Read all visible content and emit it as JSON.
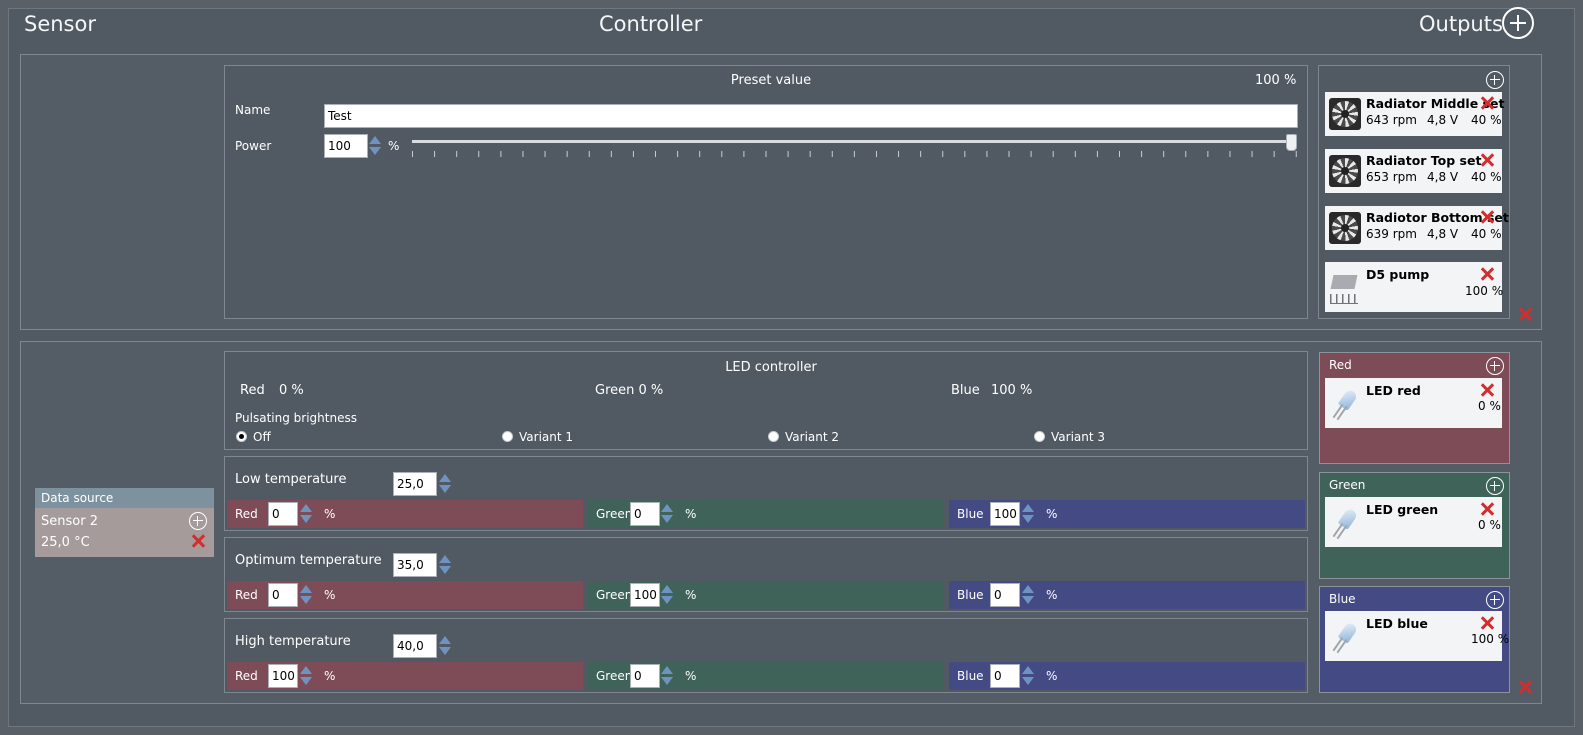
{
  "header": {
    "sensor": "Sensor",
    "controller": "Controller",
    "outputs": "Outputs"
  },
  "preset": {
    "title": "Preset value",
    "value": "100 %",
    "name_label": "Name",
    "name_value": "Test",
    "power_label": "Power",
    "power_value": "100",
    "power_unit": "%",
    "power_level": 1.0
  },
  "outputs1": [
    {
      "name": "Radiator Middle set",
      "rpm": "643 rpm",
      "volt": "4,8 V",
      "pct": "40 %",
      "icon": "fan-icon"
    },
    {
      "name": "Radiator Top set",
      "rpm": "653 rpm",
      "volt": "4,8 V",
      "pct": "40 %",
      "icon": "fan-icon"
    },
    {
      "name": "Radiotor Bottom set",
      "rpm": "639 rpm",
      "volt": "4,8 V",
      "pct": "40 %",
      "icon": "fan-icon"
    },
    {
      "name": "D5 pump",
      "pct": "100 %",
      "icon": "pump-chip-icon"
    }
  ],
  "sensor": {
    "header": "Data source",
    "name": "Sensor 2",
    "value": "25,0 °C"
  },
  "led": {
    "title": "LED controller",
    "red_label": "Red",
    "red_value": "0 %",
    "green_label": "Green 0 %",
    "blue_label": "Blue",
    "blue_value": "100 %",
    "pulsating_label": "Pulsating brightness",
    "radios": [
      "Off",
      "Variant 1",
      "Variant 2",
      "Variant 3"
    ],
    "selected": "Off"
  },
  "temps": [
    {
      "label": "Low temperature",
      "value": "25,0",
      "red": "0",
      "green": "0",
      "blue": "100"
    },
    {
      "label": "Optimum temperature",
      "value": "35,0",
      "red": "0",
      "green": "100",
      "blue": "0"
    },
    {
      "label": "High temperature",
      "value": "40,0",
      "red": "100",
      "green": "0",
      "blue": "0"
    }
  ],
  "color_labels": {
    "red": "Red",
    "green": "Green",
    "blue": "Blue",
    "unit": "%"
  },
  "led_groups": [
    {
      "header": "Red",
      "device": "LED red",
      "pct": "0 %",
      "color": "#7d4c57"
    },
    {
      "header": "Green",
      "device": "LED green",
      "pct": "0 %",
      "color": "#3f6358"
    },
    {
      "header": "Blue",
      "device": "LED blue",
      "pct": "100 %",
      "color": "#434a84"
    }
  ],
  "colors": {
    "remove": "#d42d2d",
    "spinner": "#6f93c0",
    "background": "#515a63"
  }
}
